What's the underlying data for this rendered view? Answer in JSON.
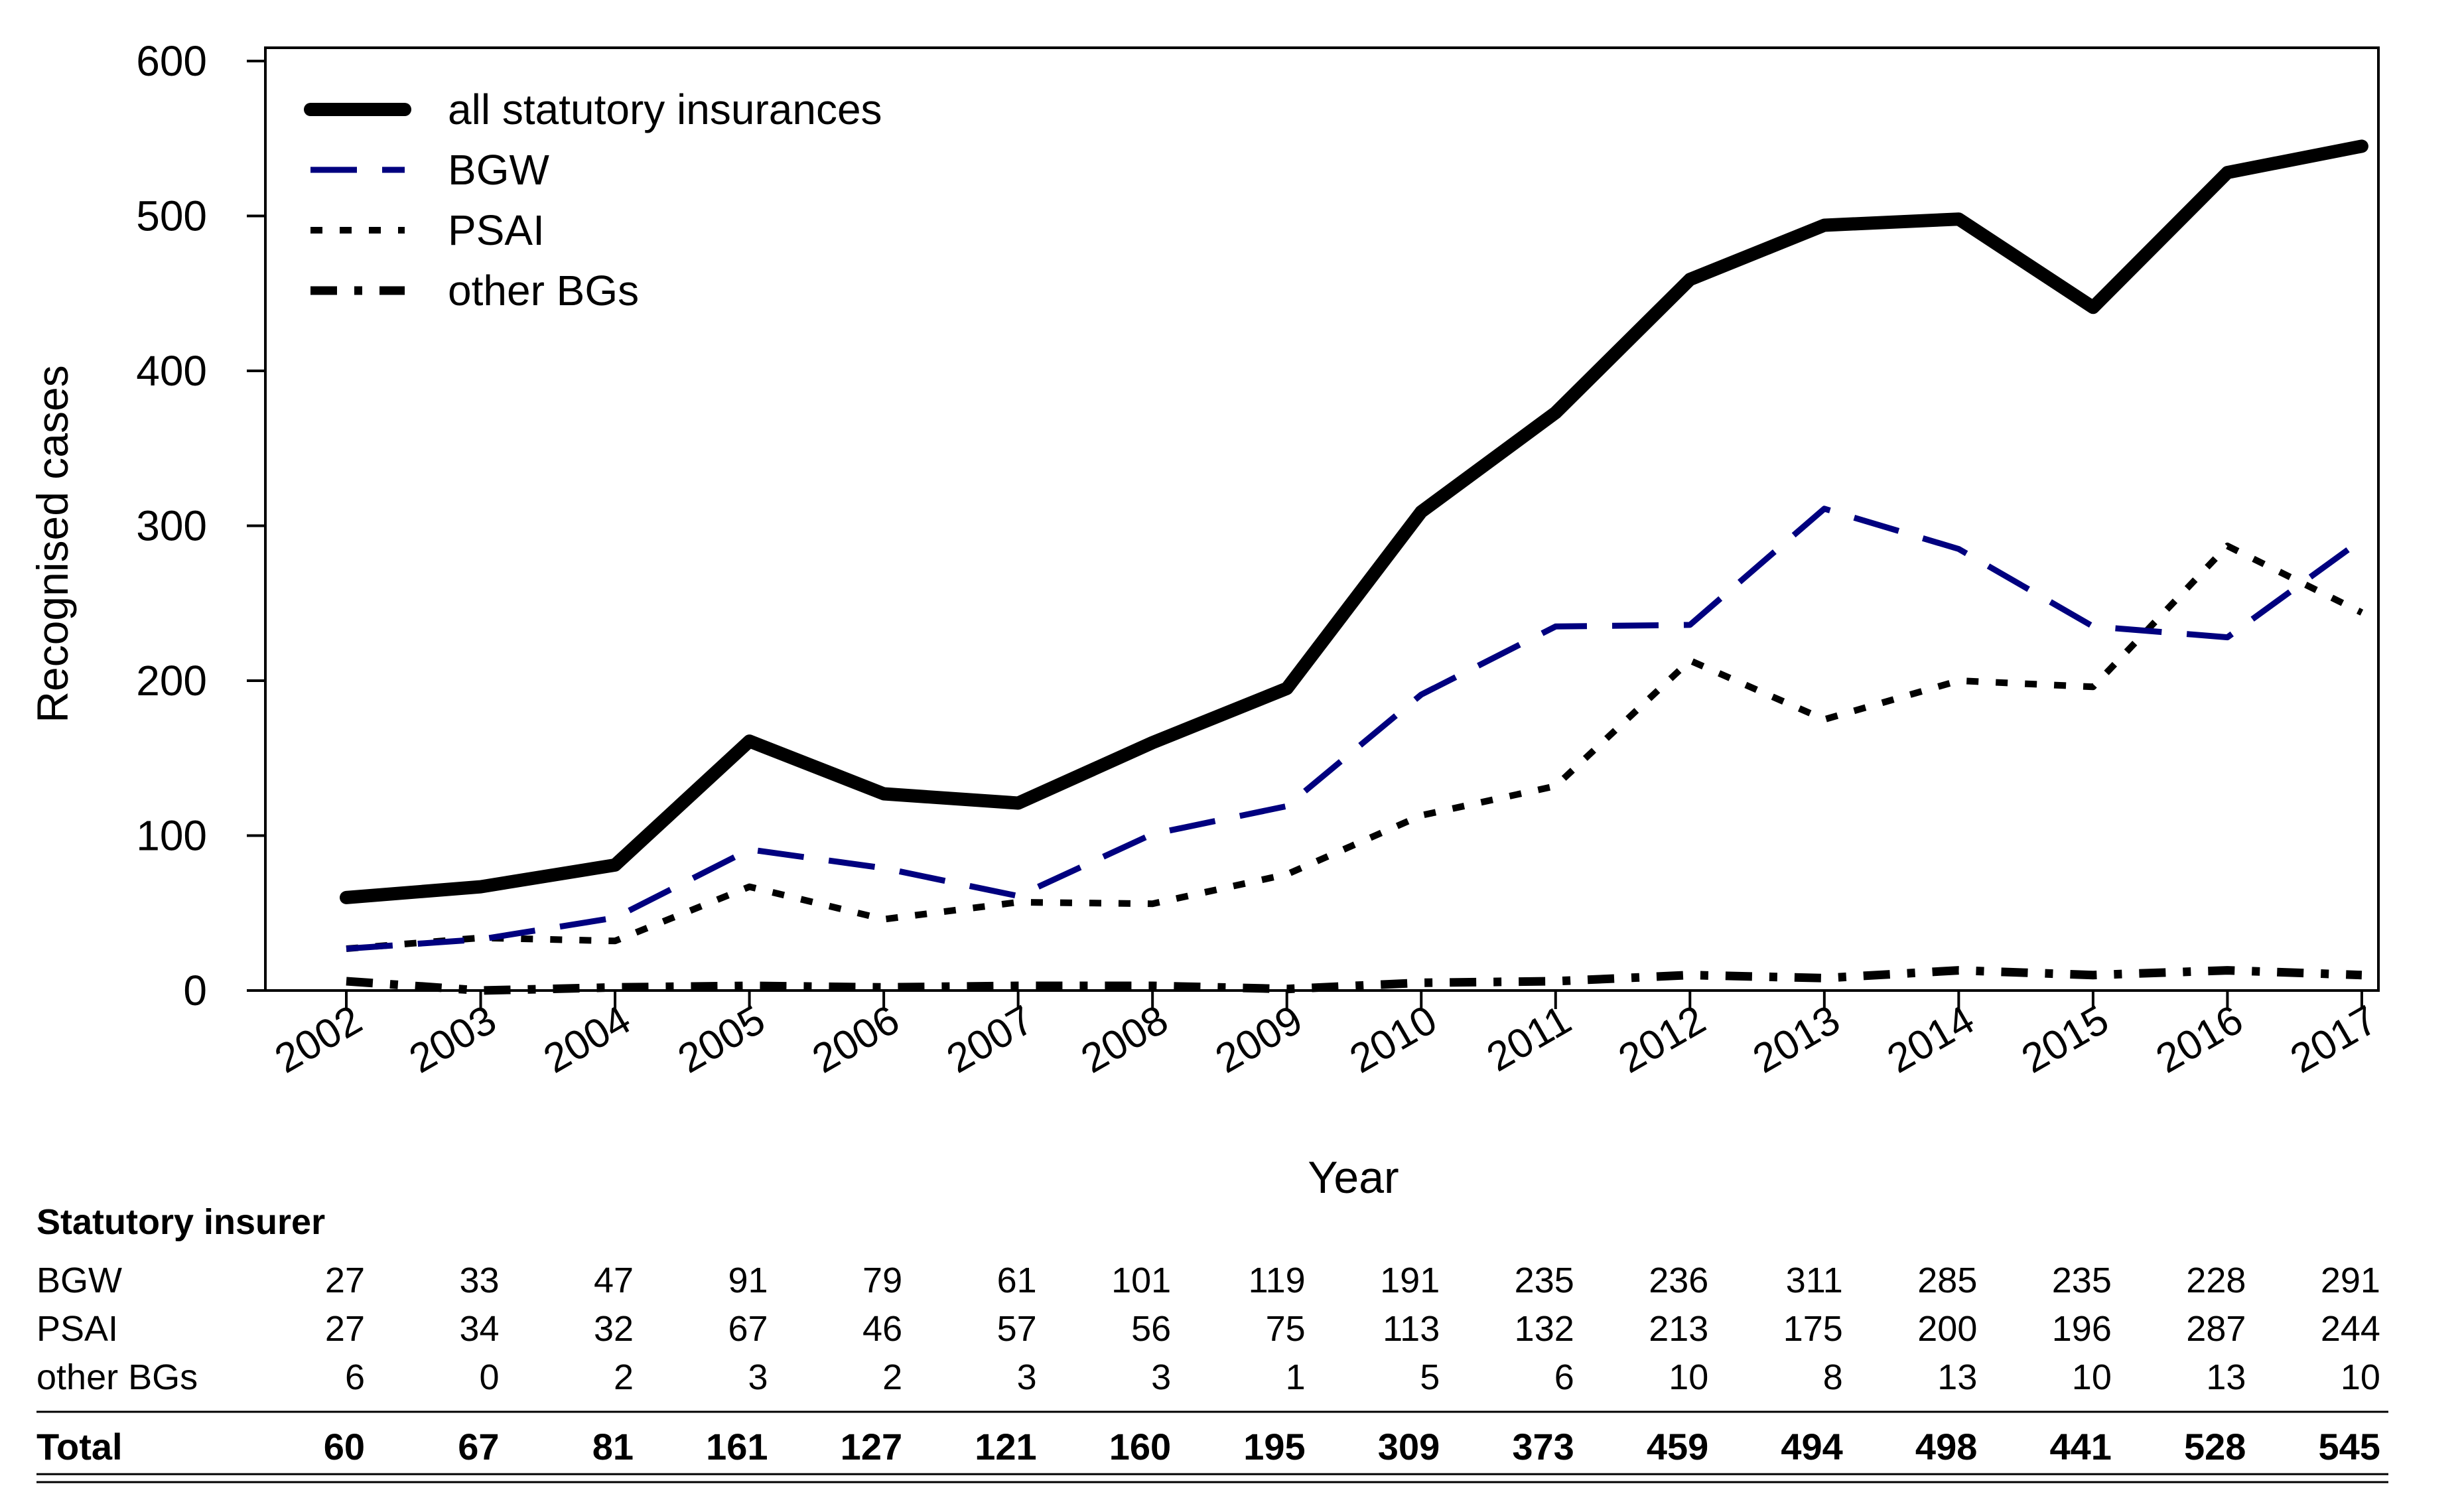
{
  "chart_data": {
    "type": "line",
    "title": "",
    "xlabel": "Year",
    "ylabel": "Recognised cases",
    "ylim": [
      0,
      600
    ],
    "yticks": [
      0,
      100,
      200,
      300,
      400,
      500,
      600
    ],
    "x": [
      "2002",
      "2003",
      "2004",
      "2005",
      "2006",
      "2007",
      "2008",
      "2009",
      "2010",
      "2011",
      "2012",
      "2013",
      "2014",
      "2015",
      "2016",
      "2017"
    ],
    "legend_position": "top-left",
    "series": [
      {
        "name": "all statutory insurances",
        "color": "#000000",
        "style": "solid",
        "values": [
          60,
          67,
          81,
          161,
          127,
          121,
          160,
          195,
          309,
          373,
          459,
          494,
          498,
          441,
          528,
          545
        ]
      },
      {
        "name": "BGW",
        "color": "#00007f",
        "style": "dashed",
        "values": [
          27,
          33,
          47,
          91,
          79,
          61,
          101,
          119,
          191,
          235,
          236,
          311,
          285,
          235,
          228,
          291
        ]
      },
      {
        "name": "PSAI",
        "color": "#000000",
        "style": "dotted",
        "values": [
          27,
          34,
          32,
          67,
          46,
          57,
          56,
          75,
          113,
          132,
          213,
          175,
          200,
          196,
          287,
          244
        ]
      },
      {
        "name": "other BGs",
        "color": "#000000",
        "style": "dashdot",
        "values": [
          6,
          0,
          2,
          3,
          2,
          3,
          3,
          1,
          5,
          6,
          10,
          8,
          13,
          10,
          13,
          10
        ]
      }
    ]
  },
  "table": {
    "heading": "Statutory insurer",
    "rows": [
      {
        "label": "BGW",
        "values": [
          "27",
          "33",
          "47",
          "91",
          "79",
          "61",
          "101",
          "119",
          "191",
          "235",
          "236",
          "311",
          "285",
          "235",
          "228",
          "291"
        ]
      },
      {
        "label": "PSAI",
        "values": [
          "27",
          "34",
          "32",
          "67",
          "46",
          "57",
          "56",
          "75",
          "113",
          "132",
          "213",
          "175",
          "200",
          "196",
          "287",
          "244"
        ]
      },
      {
        "label": "other BGs",
        "values": [
          "6",
          "0",
          "2",
          "3",
          "2",
          "3",
          "3",
          "1",
          "5",
          "6",
          "10",
          "8",
          "13",
          "10",
          "13",
          "10"
        ]
      }
    ],
    "total": {
      "label": "Total",
      "values": [
        "60",
        "67",
        "81",
        "161",
        "127",
        "121",
        "160",
        "195",
        "309",
        "373",
        "459",
        "494",
        "498",
        "441",
        "528",
        "545"
      ]
    }
  }
}
